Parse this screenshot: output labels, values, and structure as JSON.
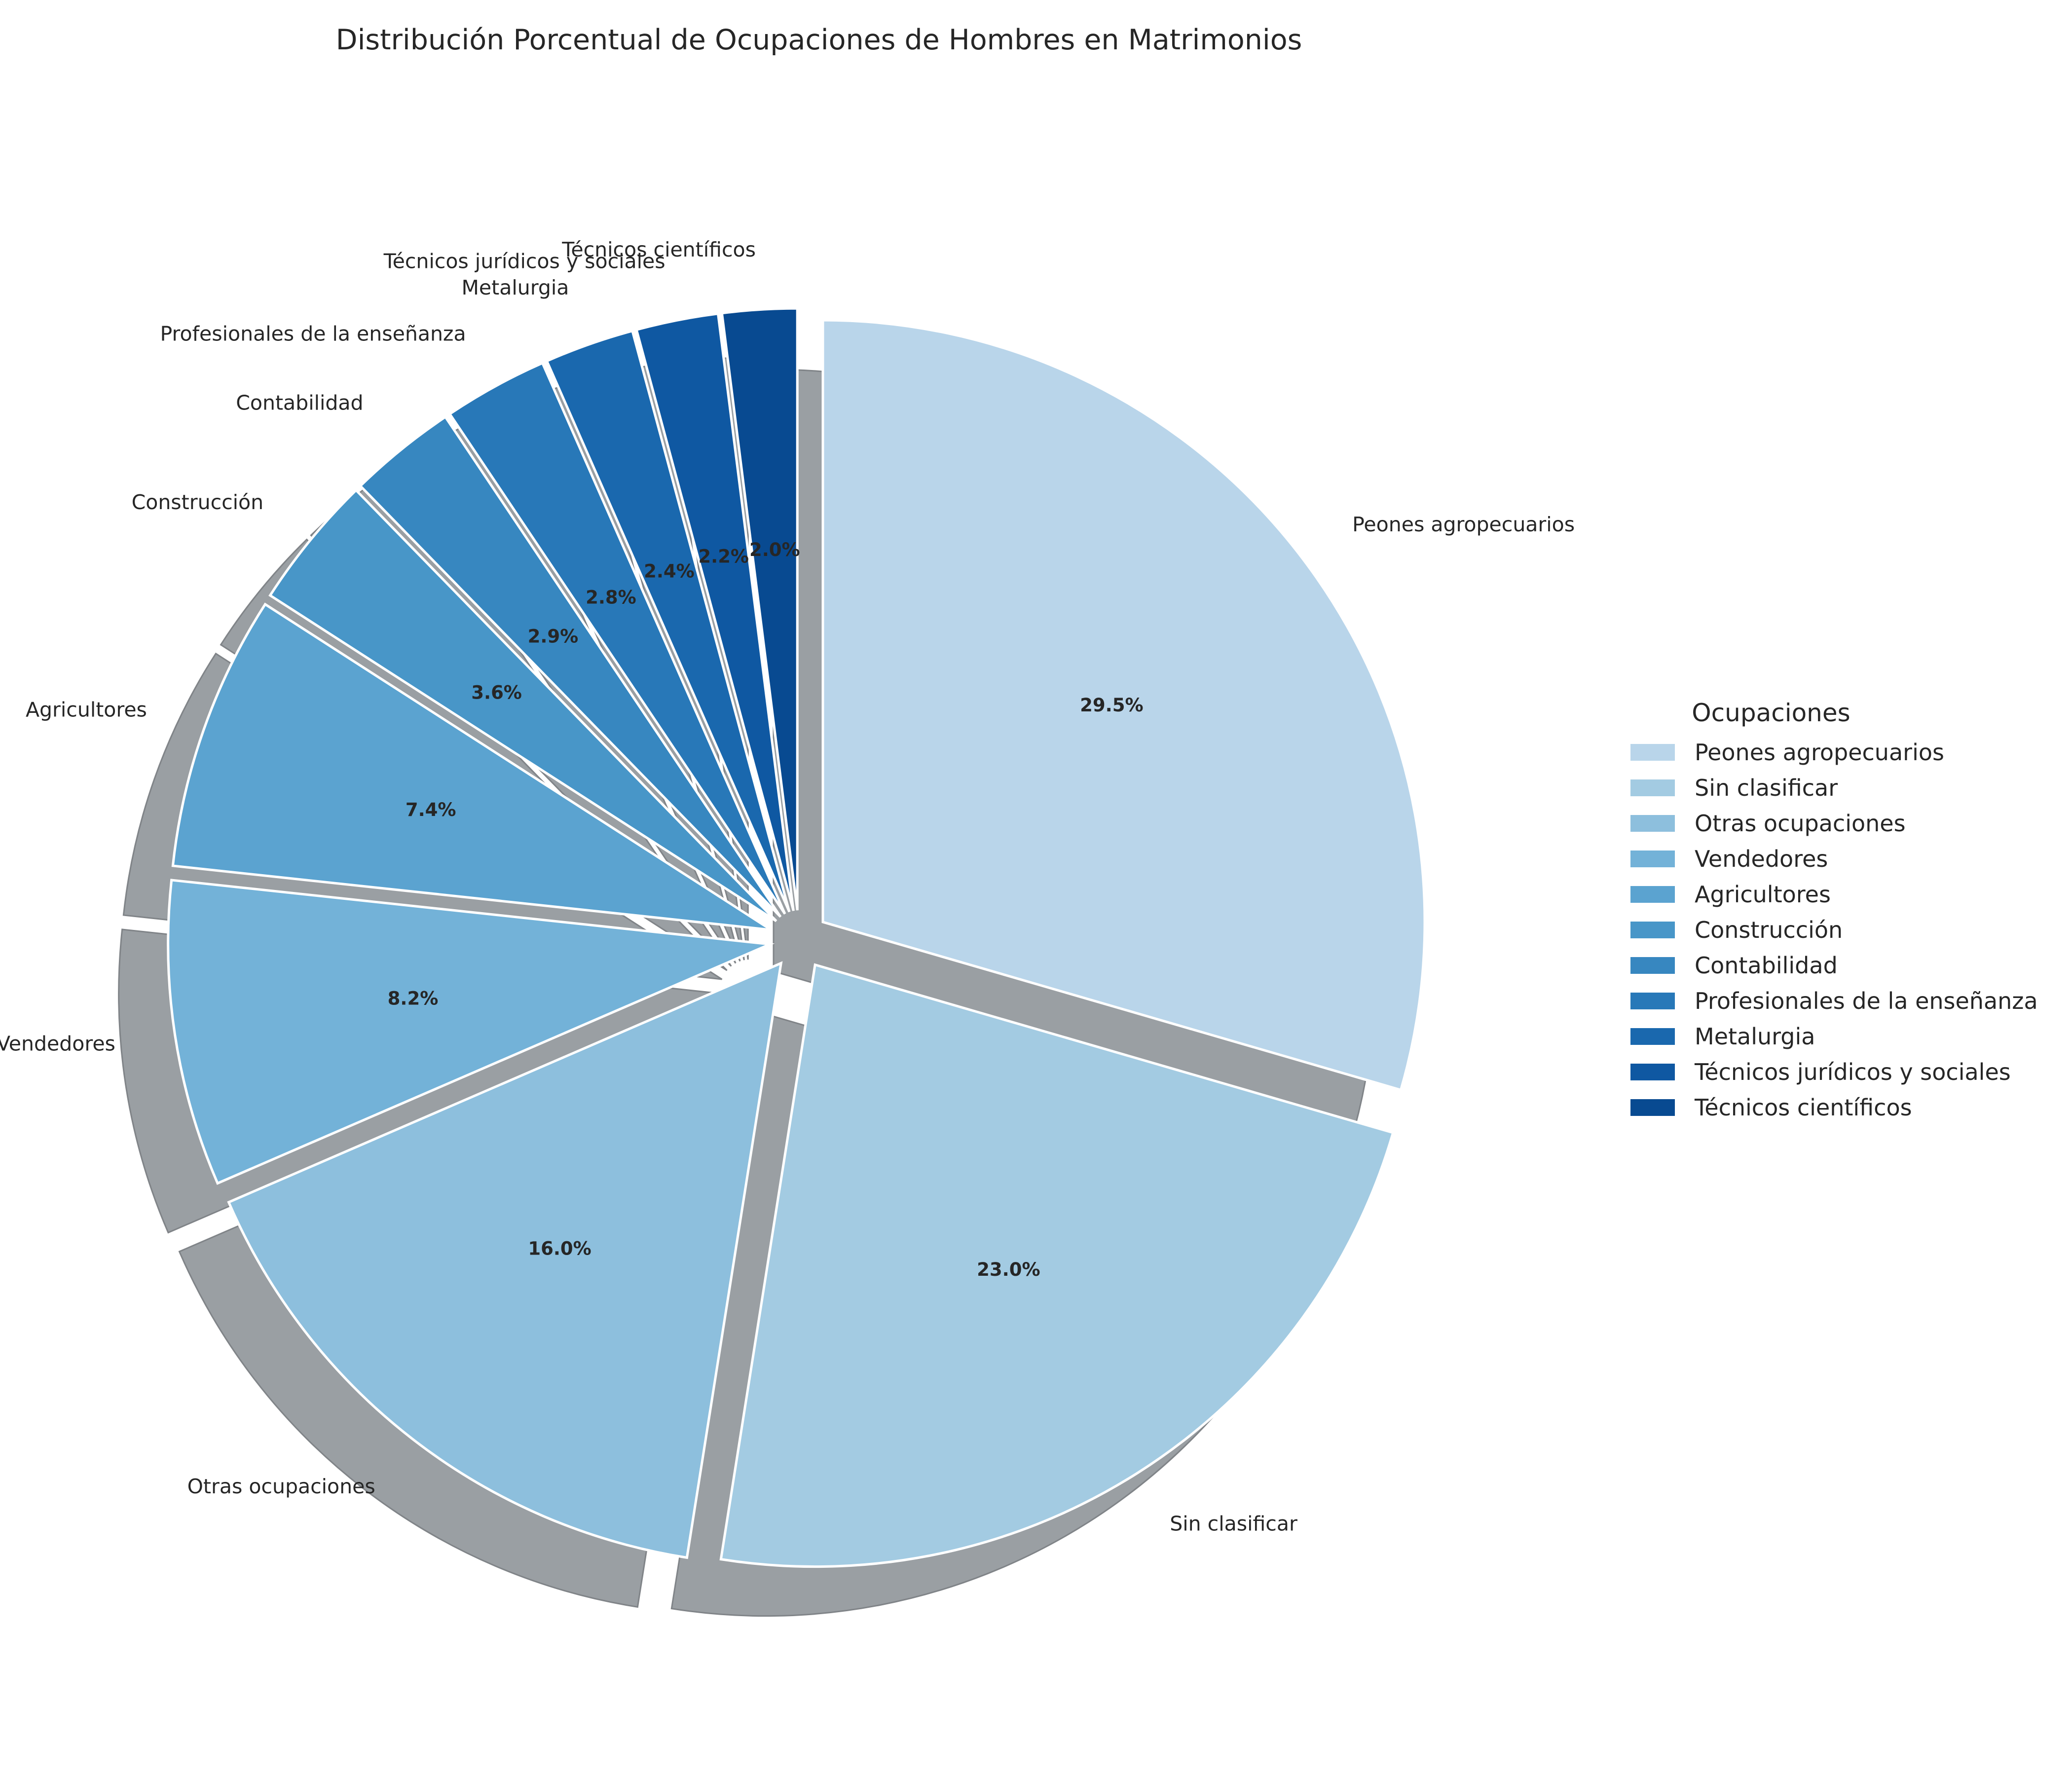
{
  "chart_data": {
    "type": "pie",
    "title": "Distribución Porcentual de Ocupaciones de Hombres en Matrimonios",
    "legend_title": "Ocupaciones",
    "legend_position": "right",
    "shadow": true,
    "exploded": true,
    "start_angle_deg": 90,
    "direction": "clockwise",
    "slices": [
      {
        "label": "Peones agropecuarios",
        "value": 29.5,
        "pct_label": "29.5%",
        "color": "#b9d5ea"
      },
      {
        "label": "Sin clasificar",
        "value": 23.0,
        "pct_label": "23.0%",
        "color": "#a3cbe2"
      },
      {
        "label": "Otras ocupaciones",
        "value": 16.0,
        "pct_label": "16.0%",
        "color": "#8dbfdd"
      },
      {
        "label": "Vendedores",
        "value": 8.2,
        "pct_label": "8.2%",
        "color": "#73b2d8"
      },
      {
        "label": "Agricultores",
        "value": 7.4,
        "pct_label": "7.4%",
        "color": "#5ba3d0"
      },
      {
        "label": "Construcción",
        "value": 3.6,
        "pct_label": "3.6%",
        "color": "#4896c8"
      },
      {
        "label": "Contabilidad",
        "value": 2.9,
        "pct_label": "2.9%",
        "color": "#3787c0"
      },
      {
        "label": "Profesionales de la enseñanza",
        "value": 2.8,
        "pct_label": "2.8%",
        "color": "#2878b8"
      },
      {
        "label": "Metalurgia",
        "value": 2.4,
        "pct_label": "2.4%",
        "color": "#1a68ae"
      },
      {
        "label": "Técnicos jurídicos y sociales",
        "value": 2.2,
        "pct_label": "2.2%",
        "color": "#0f58a2"
      },
      {
        "label": "Técnicos científicos",
        "value": 2.0,
        "pct_label": "2.0%",
        "color": "#084a91"
      }
    ]
  }
}
